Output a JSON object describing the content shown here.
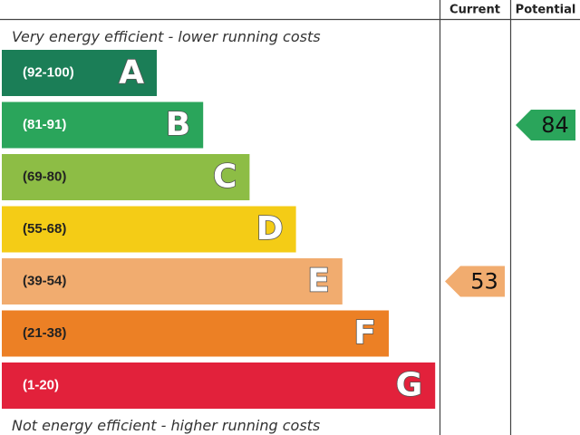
{
  "header": {
    "current_label": "Current",
    "potential_label": "Potential"
  },
  "captions": {
    "top": "Very energy efficient - lower running costs",
    "bottom": "Not energy efficient - higher running costs"
  },
  "chart_data": {
    "type": "bar",
    "bands": [
      {
        "letter": "A",
        "range": "(92-100)",
        "min": 92,
        "max": 100,
        "color": "#1b7e57",
        "range_text_color": "#ffffff"
      },
      {
        "letter": "B",
        "range": "(81-91)",
        "min": 81,
        "max": 91,
        "color": "#2aa55b",
        "range_text_color": "#ffffff"
      },
      {
        "letter": "C",
        "range": "(69-80)",
        "min": 69,
        "max": 80,
        "color": "#8dbd45",
        "range_text_color": "#222222"
      },
      {
        "letter": "D",
        "range": "(55-68)",
        "min": 55,
        "max": 68,
        "color": "#f4cc16",
        "range_text_color": "#222222"
      },
      {
        "letter": "E",
        "range": "(39-54)",
        "min": 39,
        "max": 54,
        "color": "#f1ac6f",
        "range_text_color": "#222222"
      },
      {
        "letter": "F",
        "range": "(21-38)",
        "min": 21,
        "max": 38,
        "color": "#ec8025",
        "range_text_color": "#222222"
      },
      {
        "letter": "G",
        "range": "(1-20)",
        "min": 1,
        "max": 20,
        "color": "#e2213b",
        "range_text_color": "#ffffff"
      }
    ],
    "current": {
      "value": 53,
      "band": "E",
      "color": "#f1ac6f"
    },
    "potential": {
      "value": 84,
      "band": "B",
      "color": "#2aa55b"
    }
  }
}
